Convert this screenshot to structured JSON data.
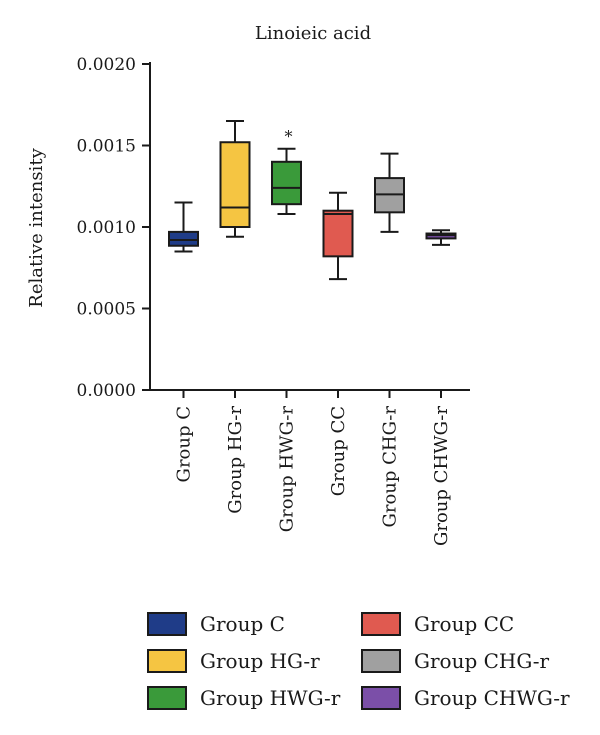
{
  "chart_data": {
    "type": "box",
    "title": "Linoieic acid",
    "xlabel": "",
    "ylabel": "Relative intensity",
    "ylim": [
      0,
      0.002
    ],
    "yticks": [
      "0.0000",
      "0.0005",
      "0.0010",
      "0.0015",
      "0.0020"
    ],
    "grid": false,
    "legend_position": "bottom",
    "categories": [
      "Group C",
      "Group HG-r",
      "Group HWG-r",
      "Group CC",
      "Group CHG-r",
      "Group CHWG-r"
    ],
    "series": [
      {
        "name": "Group C",
        "color": "#1f3c88",
        "min": 0.00085,
        "q1": 0.000885,
        "median": 0.00092,
        "q3": 0.00097,
        "max": 0.00115,
        "annotation": ""
      },
      {
        "name": "Group HG-r",
        "color": "#f5c542",
        "min": 0.00094,
        "q1": 0.001,
        "median": 0.00112,
        "q3": 0.00152,
        "max": 0.00165,
        "annotation": ""
      },
      {
        "name": "Group HWG-r",
        "color": "#3a9a3a",
        "min": 0.00108,
        "q1": 0.00114,
        "median": 0.00124,
        "q3": 0.0014,
        "max": 0.00148,
        "annotation": "*"
      },
      {
        "name": "Group CC",
        "color": "#e05a50",
        "min": 0.00068,
        "q1": 0.00082,
        "median": 0.00108,
        "q3": 0.0011,
        "max": 0.00121,
        "annotation": ""
      },
      {
        "name": "Group CHG-r",
        "color": "#a0a0a0",
        "min": 0.00097,
        "q1": 0.00109,
        "median": 0.0012,
        "q3": 0.0013,
        "max": 0.00145,
        "annotation": ""
      },
      {
        "name": "Group CHWG-r",
        "color": "#7b4fa8",
        "min": 0.00089,
        "q1": 0.00093,
        "median": 0.00095,
        "q3": 0.00096,
        "max": 0.00098,
        "annotation": ""
      }
    ]
  }
}
